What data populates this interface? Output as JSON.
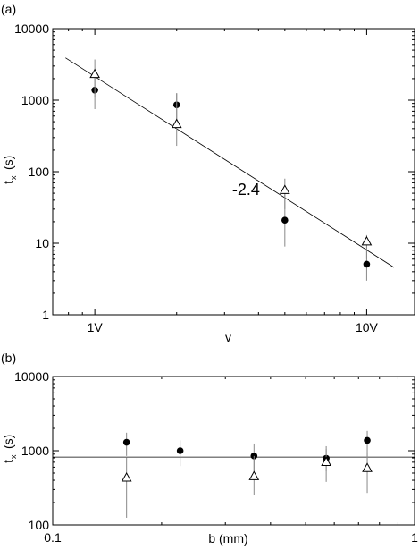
{
  "chart_data": [
    {
      "id": "a",
      "panel_label": "(a)",
      "type": "scatter",
      "xscale": "log",
      "yscale": "log",
      "xlabel": "v",
      "ylabel_main": "t",
      "ylabel_sub": "x",
      "ylabel_unit": "(s)",
      "xlim": [
        0.7,
        15
      ],
      "ylim": [
        1,
        10000
      ],
      "xticks": [
        {
          "value": 1,
          "label": "1V"
        },
        {
          "value": 10,
          "label": "10V"
        }
      ],
      "yticks": [
        {
          "value": 1,
          "label": "1"
        },
        {
          "value": 10,
          "label": "10"
        },
        {
          "value": 100,
          "label": "100"
        },
        {
          "value": 1000,
          "label": "1000"
        },
        {
          "value": 10000,
          "label": "10000"
        }
      ],
      "series": [
        {
          "marker": "circle",
          "points": [
            {
              "x": 1,
              "y": 1380,
              "ylo": 750,
              "yhi": 2500
            },
            {
              "x": 2,
              "y": 860,
              "ylo": 470,
              "yhi": 1250
            },
            {
              "x": 5,
              "y": 21,
              "ylo": 9,
              "yhi": 48
            },
            {
              "x": 10,
              "y": 5.1,
              "ylo": 3,
              "yhi": 9
            }
          ]
        },
        {
          "marker": "triangle",
          "points": [
            {
              "x": 1,
              "y": 2300,
              "ylo": 1100,
              "yhi": 3700
            },
            {
              "x": 2,
              "y": 460,
              "ylo": 230,
              "yhi": 1250
            },
            {
              "x": 5,
              "y": 55,
              "ylo": 30,
              "yhi": 80
            },
            {
              "x": 10,
              "y": 10.5,
              "ylo": 6,
              "yhi": 13
            }
          ]
        }
      ],
      "fit_line": {
        "x": [
          0.78,
          12.6
        ],
        "y": [
          3900,
          4.6
        ]
      },
      "annotation": "-2.4",
      "annotation_pos": {
        "x": 3.6,
        "y": 47
      }
    },
    {
      "id": "b",
      "panel_label": "(b)",
      "type": "scatter",
      "xscale": "log",
      "yscale": "log",
      "xlabel": "b (mm)",
      "ylabel_main": "t",
      "ylabel_sub": "x",
      "ylabel_unit": "(s)",
      "xlim": [
        0.1,
        1
      ],
      "ylim": [
        100,
        10000
      ],
      "xticks": [
        {
          "value": 0.1,
          "label": "0.1"
        },
        {
          "value": 1,
          "label": "1"
        }
      ],
      "yticks": [
        {
          "value": 100,
          "label": "100"
        },
        {
          "value": 1000,
          "label": "1000"
        },
        {
          "value": 10000,
          "label": "10000"
        }
      ],
      "series": [
        {
          "marker": "circle",
          "points": [
            {
              "x": 0.16,
              "y": 1300,
              "ylo": 850,
              "yhi": 1750
            },
            {
              "x": 0.225,
              "y": 1000,
              "ylo": 620,
              "yhi": 1380
            },
            {
              "x": 0.36,
              "y": 850,
              "ylo": 520,
              "yhi": 1250
            },
            {
              "x": 0.57,
              "y": 790,
              "ylo": 530,
              "yhi": 1050
            },
            {
              "x": 0.74,
              "y": 1380,
              "ylo": 750,
              "yhi": 1850
            }
          ]
        },
        {
          "marker": "triangle",
          "points": [
            {
              "x": 0.16,
              "y": 430,
              "ylo": 125,
              "yhi": 820
            },
            {
              "x": 0.36,
              "y": 450,
              "ylo": 250,
              "yhi": 850
            },
            {
              "x": 0.57,
              "y": 700,
              "ylo": 380,
              "yhi": 1150
            },
            {
              "x": 0.74,
              "y": 580,
              "ylo": 270,
              "yhi": 950
            }
          ]
        }
      ],
      "hline": 820
    }
  ]
}
